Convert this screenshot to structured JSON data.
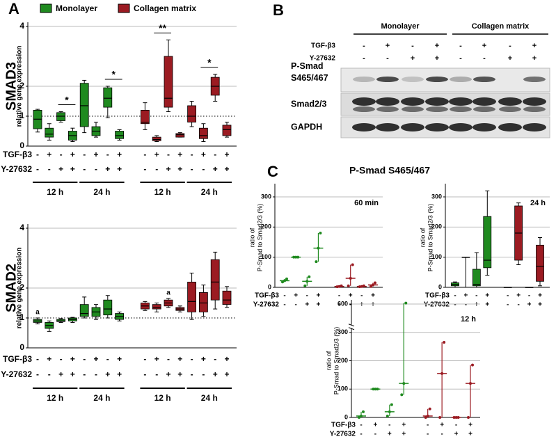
{
  "panel_labels": [
    "A",
    "B",
    "C"
  ],
  "panel_c_title": "P-Smad S465/467",
  "blot": {
    "groups": [
      "Monolayer",
      "Collagen matrix"
    ],
    "row_labels": [
      "TGF-β3",
      "Y-27632"
    ],
    "rows": [
      [
        "-",
        "+",
        "-",
        "+",
        "-",
        "+",
        "-",
        "+"
      ],
      [
        "-",
        "-",
        "+",
        "+",
        "-",
        "-",
        "+",
        "+"
      ]
    ],
    "bands": [
      [
        "P-Smad",
        "S465/467"
      ],
      [
        "Smad2/3"
      ],
      [
        "GAPDH"
      ]
    ]
  },
  "chart_data": [
    {
      "type": "box",
      "title": "SMAD3",
      "ylabel": "relative gene expression",
      "ylim": [
        0,
        4
      ],
      "yticks": [
        0,
        1,
        2,
        4
      ],
      "grid": true,
      "reference_line": 1,
      "legend": "top",
      "row_labels": [
        "TGF-β3",
        "Y-27632"
      ],
      "rows": [
        [
          "-",
          "+",
          "-",
          "+",
          "-",
          "+",
          "-",
          "+",
          "-",
          "+",
          "-",
          "+",
          "-",
          "+",
          "-",
          "+"
        ],
        [
          "-",
          "-",
          "+",
          "+",
          "-",
          "-",
          "+",
          "+",
          "-",
          "-",
          "+",
          "+",
          "-",
          "-",
          "+",
          "+"
        ]
      ],
      "time_groups": [
        "12 h",
        "24 h",
        "12 h",
        "24 h"
      ],
      "series": [
        {
          "name": "Monolayer",
          "color": "#1f8a1f",
          "min": [
            0.47,
            0.2,
            0.8,
            0.15,
            0.45,
            0.3,
            0.95,
            0.2
          ],
          "q1": [
            0.58,
            0.3,
            0.85,
            0.2,
            0.65,
            0.35,
            1.3,
            0.25
          ],
          "median": [
            0.9,
            0.4,
            1.0,
            0.35,
            1.35,
            0.5,
            1.6,
            0.35
          ],
          "q3": [
            1.2,
            0.6,
            1.12,
            0.5,
            2.1,
            0.65,
            1.95,
            0.5
          ],
          "max": [
            1.23,
            0.75,
            1.15,
            0.6,
            2.2,
            0.8,
            2.0,
            0.55
          ]
        },
        {
          "name": "Collagen matrix",
          "color": "#9b1b22",
          "min": [
            0.55,
            0.15,
            1.15,
            0.3,
            0.65,
            0.15,
            1.5,
            0.3
          ],
          "q1": [
            0.75,
            0.18,
            1.3,
            0.3,
            0.8,
            0.25,
            1.7,
            0.35
          ],
          "median": [
            0.8,
            0.22,
            1.6,
            0.38,
            1.0,
            0.35,
            2.0,
            0.55
          ],
          "q3": [
            1.2,
            0.3,
            3.0,
            0.42,
            1.35,
            0.6,
            2.3,
            0.7
          ],
          "max": [
            1.45,
            0.35,
            3.55,
            0.45,
            1.5,
            0.75,
            2.4,
            0.8
          ]
        }
      ],
      "annotations": [
        {
          "text": "*",
          "columns": [
            2,
            3
          ]
        },
        {
          "text": "*",
          "columns": [
            6,
            7
          ]
        },
        {
          "text": "**",
          "columns": [
            9,
            10
          ]
        },
        {
          "text": "*",
          "columns": [
            13,
            14
          ]
        }
      ]
    },
    {
      "type": "box",
      "title": "SMAD2",
      "ylabel": "relative gene expression",
      "ylim": [
        0,
        4
      ],
      "yticks": [
        0,
        1,
        2,
        4
      ],
      "grid": true,
      "reference_line": 1,
      "row_labels": [
        "TGF-β3",
        "Y-27632"
      ],
      "rows": [
        [
          "-",
          "+",
          "-",
          "+",
          "-",
          "+",
          "-",
          "+",
          "-",
          "+",
          "-",
          "+",
          "-",
          "+",
          "-",
          "+"
        ],
        [
          "-",
          "-",
          "+",
          "+",
          "-",
          "-",
          "+",
          "+",
          "-",
          "-",
          "+",
          "+",
          "-",
          "-",
          "+",
          "+"
        ]
      ],
      "time_groups": [
        "12 h",
        "24 h",
        "12 h",
        "24 h"
      ],
      "series": [
        {
          "color": "#1f8a1f",
          "min": [
            0.8,
            0.55,
            0.85,
            0.85,
            1.0,
            0.95,
            1.0,
            0.9
          ],
          "q1": [
            0.85,
            0.65,
            0.88,
            0.9,
            1.05,
            1.05,
            1.1,
            0.95
          ],
          "median": [
            0.9,
            0.75,
            0.9,
            0.95,
            1.15,
            1.2,
            1.3,
            1.05
          ],
          "q3": [
            0.95,
            0.85,
            0.95,
            1.0,
            1.45,
            1.35,
            1.6,
            1.15
          ],
          "max": [
            1.0,
            0.9,
            0.98,
            1.02,
            1.7,
            1.45,
            1.75,
            1.2
          ]
        },
        {
          "color": "#9b1b22",
          "min": [
            1.25,
            1.2,
            1.35,
            1.2,
            0.95,
            1.05,
            1.3,
            1.35
          ],
          "q1": [
            1.3,
            1.3,
            1.4,
            1.25,
            1.2,
            1.2,
            1.6,
            1.45
          ],
          "median": [
            1.4,
            1.35,
            1.5,
            1.3,
            1.55,
            1.5,
            2.2,
            1.6
          ],
          "q3": [
            1.5,
            1.45,
            1.6,
            1.35,
            2.2,
            1.85,
            2.95,
            1.9
          ],
          "max": [
            1.55,
            1.5,
            1.65,
            1.4,
            2.5,
            2.1,
            3.2,
            2.05
          ]
        }
      ],
      "annotations": [
        {
          "text": "a",
          "columns": [
            0
          ]
        },
        {
          "text": "a",
          "columns": [
            10
          ]
        }
      ]
    },
    {
      "type": "range",
      "title": "60 min",
      "ylabel": [
        "ratio of",
        "P-Smad to Smad2/3 (%)"
      ],
      "ylim": [
        0,
        330
      ],
      "yticks": [
        0,
        100,
        200,
        300
      ],
      "grid": true,
      "row_labels": [
        "TGF-β3",
        "Y-27632"
      ],
      "rows": [
        [
          "-",
          "+",
          "-",
          "+",
          "-",
          "+",
          "-",
          "+"
        ],
        [
          "-",
          "-",
          "+",
          "+",
          "-",
          "-",
          "+",
          "+"
        ]
      ],
      "series": [
        {
          "color": "#1f8a1f",
          "min": [
            18,
            100,
            5,
            85
          ],
          "median": [
            22,
            100,
            20,
            130
          ],
          "max": [
            28,
            100,
            35,
            180
          ]
        },
        {
          "color": "#9b1b22",
          "min": [
            2,
            5,
            2,
            3
          ],
          "median": [
            3,
            30,
            3,
            8
          ],
          "max": [
            5,
            75,
            5,
            15
          ]
        }
      ]
    },
    {
      "type": "box",
      "title": "24 h",
      "ylabel": [
        "ratio of",
        "P-Smad to Smad2/3 (%)"
      ],
      "ylim": [
        0,
        330
      ],
      "yticks": [
        0,
        100,
        200,
        300
      ],
      "grid": true,
      "row_labels": [
        "TGF-β3",
        "Y-27632"
      ],
      "rows": [
        [
          "-",
          "+",
          "-",
          "+",
          "-",
          "+",
          "-",
          "+"
        ],
        [
          "-",
          "-",
          "+",
          "+",
          "-",
          "-",
          "+",
          "+"
        ]
      ],
      "series": [
        {
          "color": "#1f8a1f",
          "min": [
            0,
            0,
            0,
            40
          ],
          "q1": [
            5,
            100,
            5,
            65
          ],
          "median": [
            10,
            100,
            10,
            90
          ],
          "q3": [
            15,
            100,
            60,
            235
          ],
          "max": [
            18,
            100,
            115,
            320
          ]
        },
        {
          "color": "#9b1b22",
          "min": [
            0,
            75,
            0,
            5
          ],
          "q1": [
            0,
            90,
            0,
            20
          ],
          "median": [
            0,
            180,
            0,
            70
          ],
          "q3": [
            0,
            270,
            0,
            140
          ],
          "max": [
            0,
            280,
            0,
            165
          ]
        }
      ]
    },
    {
      "type": "range",
      "title": "12 h",
      "ylabel": [
        "ratio of",
        "P-Smad to Smad2/3 (%)"
      ],
      "ylim": [
        0,
        600
      ],
      "yticks": [
        0,
        100,
        200,
        300,
        600
      ],
      "grid": true,
      "broken_axis": true,
      "row_labels": [
        "TGF-β3",
        "Y-27632"
      ],
      "rows": [
        [
          "-",
          "+",
          "-",
          "+",
          "-",
          "+",
          "-",
          "+"
        ],
        [
          "-",
          "-",
          "+",
          "+",
          "-",
          "-",
          "+",
          "+"
        ]
      ],
      "series": [
        {
          "color": "#1f8a1f",
          "min": [
            0,
            100,
            5,
            80
          ],
          "median": [
            5,
            100,
            20,
            120
          ],
          "max": [
            20,
            100,
            45,
            610
          ]
        },
        {
          "color": "#9b1b22",
          "min": [
            0,
            0,
            0,
            0
          ],
          "median": [
            5,
            155,
            0,
            120
          ],
          "max": [
            30,
            265,
            0,
            185
          ]
        }
      ]
    }
  ]
}
